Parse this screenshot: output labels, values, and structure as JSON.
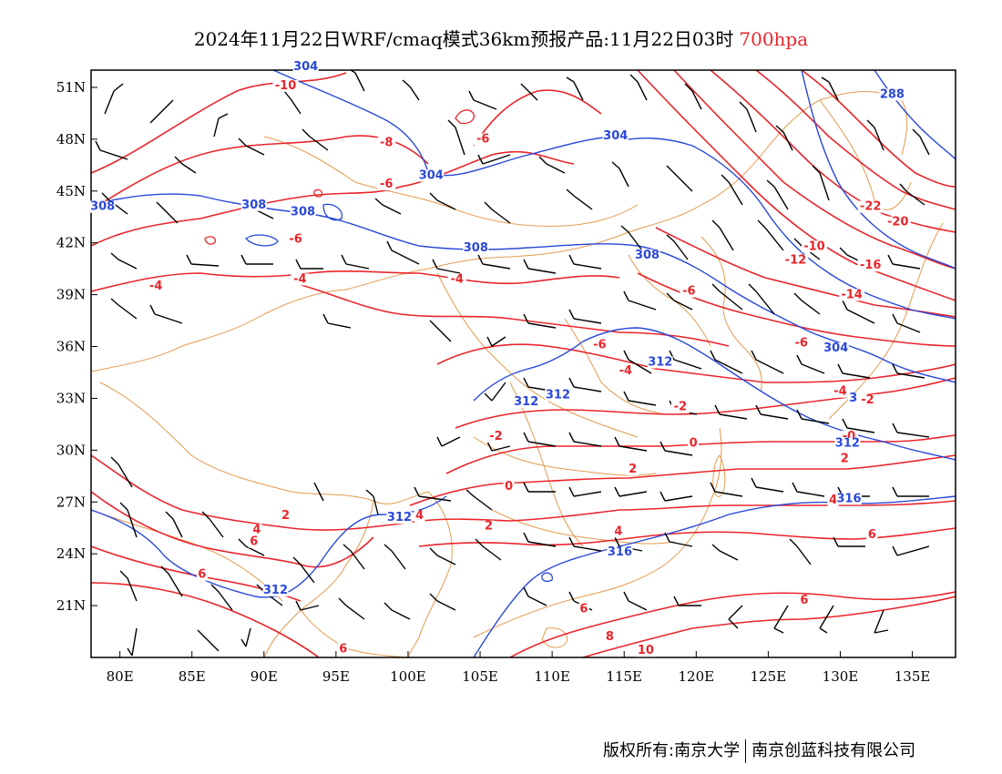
{
  "title": {
    "main": "2024年11月22日WRF/cmaq模式36km预报产品:11月22日03时",
    "level": "700hpa"
  },
  "colors": {
    "temperature": "#e8262b",
    "height": "#2a48d8",
    "border": "#e39a4e",
    "wind": "#000000",
    "frame": "#000000"
  },
  "axes": {
    "lat_labels": [
      "51N",
      "48N",
      "45N",
      "42N",
      "39N",
      "36N",
      "33N",
      "30N",
      "27N",
      "24N",
      "21N"
    ],
    "lat_values": [
      51,
      48,
      45,
      42,
      39,
      36,
      33,
      30,
      27,
      24,
      21
    ],
    "lon_labels": [
      "80E",
      "85E",
      "90E",
      "95E",
      "100E",
      "105E",
      "110E",
      "115E",
      "120E",
      "125E",
      "130E",
      "135E"
    ],
    "lon_values": [
      80,
      85,
      90,
      95,
      100,
      105,
      110,
      115,
      120,
      125,
      130,
      135
    ],
    "lon_range": [
      78,
      138
    ],
    "lat_range": [
      18,
      52
    ]
  },
  "temperature_labels": [
    {
      "text": "-10",
      "lon": 91.5,
      "lat": 50.9
    },
    {
      "text": "-8",
      "lon": 98.5,
      "lat": 47.6
    },
    {
      "text": "-6",
      "lon": 105.2,
      "lat": 47.8
    },
    {
      "text": "-6",
      "lon": 98.5,
      "lat": 45.2
    },
    {
      "text": "-6",
      "lon": 92.2,
      "lat": 42.0
    },
    {
      "text": "-4",
      "lon": 82.5,
      "lat": 39.3
    },
    {
      "text": "-4",
      "lon": 92.5,
      "lat": 39.7
    },
    {
      "text": "-4",
      "lon": 103.4,
      "lat": 39.7
    },
    {
      "text": "-6",
      "lon": 119.5,
      "lat": 39.0
    },
    {
      "text": "-6",
      "lon": 113.3,
      "lat": 35.9
    },
    {
      "text": "-6",
      "lon": 127.3,
      "lat": 36.0
    },
    {
      "text": "-4",
      "lon": 115.1,
      "lat": 34.4
    },
    {
      "text": "-4",
      "lon": 130.0,
      "lat": 33.2
    },
    {
      "text": "-2",
      "lon": 118.9,
      "lat": 32.3
    },
    {
      "text": "-2",
      "lon": 106.1,
      "lat": 30.6
    },
    {
      "text": "-2",
      "lon": 131.9,
      "lat": 32.7
    },
    {
      "text": "-0",
      "lon": 130.6,
      "lat": 30.6
    },
    {
      "text": "0",
      "lon": 119.8,
      "lat": 30.2
    },
    {
      "text": "2",
      "lon": 115.6,
      "lat": 28.7
    },
    {
      "text": "2",
      "lon": 130.3,
      "lat": 29.3
    },
    {
      "text": "0",
      "lon": 107.0,
      "lat": 27.7
    },
    {
      "text": "2",
      "lon": 91.5,
      "lat": 26.0
    },
    {
      "text": "4",
      "lon": 100.8,
      "lat": 26.0
    },
    {
      "text": "2",
      "lon": 105.6,
      "lat": 25.4
    },
    {
      "text": "4",
      "lon": 89.5,
      "lat": 25.2
    },
    {
      "text": "4",
      "lon": 114.6,
      "lat": 25.1
    },
    {
      "text": "4",
      "lon": 129.5,
      "lat": 26.9
    },
    {
      "text": "6",
      "lon": 89.3,
      "lat": 24.5
    },
    {
      "text": "6",
      "lon": 132.2,
      "lat": 24.9
    },
    {
      "text": "6",
      "lon": 85.7,
      "lat": 22.6
    },
    {
      "text": "6",
      "lon": 112.2,
      "lat": 20.6
    },
    {
      "text": "6",
      "lon": 127.5,
      "lat": 21.1
    },
    {
      "text": "8",
      "lon": 114.0,
      "lat": 19.0
    },
    {
      "text": "10",
      "lon": 116.5,
      "lat": 18.2
    },
    {
      "text": "6",
      "lon": 95.5,
      "lat": 18.3
    },
    {
      "text": "-10",
      "lon": 128.2,
      "lat": 41.6
    },
    {
      "text": "-12",
      "lon": 126.9,
      "lat": 40.8
    },
    {
      "text": "-16",
      "lon": 132.1,
      "lat": 40.5
    },
    {
      "text": "-14",
      "lon": 130.8,
      "lat": 38.8
    },
    {
      "text": "-22",
      "lon": 132.1,
      "lat": 43.9
    },
    {
      "text": "-20",
      "lon": 134.0,
      "lat": 43.0
    }
  ],
  "height_labels": [
    {
      "text": "304",
      "lon": 92.9,
      "lat": 52.0
    },
    {
      "text": "304",
      "lon": 101.6,
      "lat": 45.7
    },
    {
      "text": "304",
      "lon": 114.4,
      "lat": 48.0
    },
    {
      "text": "308",
      "lon": 78.8,
      "lat": 43.9
    },
    {
      "text": "308",
      "lon": 89.3,
      "lat": 44.0
    },
    {
      "text": "308",
      "lon": 92.7,
      "lat": 43.6
    },
    {
      "text": "308",
      "lon": 104.7,
      "lat": 41.5
    },
    {
      "text": "308",
      "lon": 116.6,
      "lat": 41.1
    },
    {
      "text": "312",
      "lon": 117.5,
      "lat": 34.9
    },
    {
      "text": "312",
      "lon": 108.2,
      "lat": 32.6
    },
    {
      "text": "312",
      "lon": 110.4,
      "lat": 33.0
    },
    {
      "text": "312",
      "lon": 99.4,
      "lat": 25.9
    },
    {
      "text": "312",
      "lon": 90.8,
      "lat": 21.7
    },
    {
      "text": "316",
      "lon": 114.7,
      "lat": 23.9
    },
    {
      "text": "316",
      "lon": 130.6,
      "lat": 27.0
    },
    {
      "text": "312",
      "lon": 130.5,
      "lat": 30.2
    },
    {
      "text": "304",
      "lon": 129.7,
      "lat": 35.7
    },
    {
      "text": "288",
      "lon": 133.6,
      "lat": 50.4
    },
    {
      "text": "3",
      "lon": 130.9,
      "lat": 32.8
    }
  ],
  "footer": {
    "left": "版权所有:南京大学",
    "right": "南京创蓝科技有限公司"
  }
}
